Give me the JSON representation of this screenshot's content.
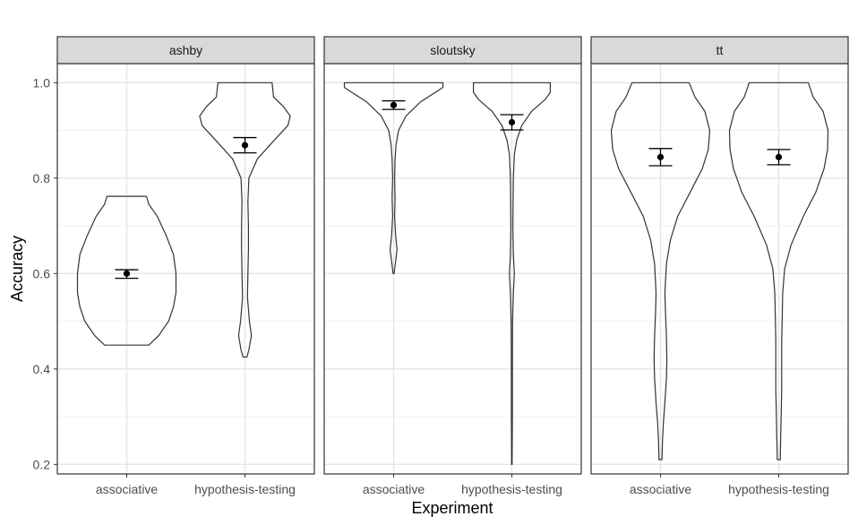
{
  "chart_data": {
    "type": "violin",
    "xlabel": "Experiment",
    "ylabel": "Accuracy",
    "ylim": [
      0.18,
      1.04
    ],
    "yticks": [
      "0.2",
      "0.4",
      "0.6",
      "0.8",
      "1.0"
    ],
    "categories": [
      "associative",
      "hypothesis-testing"
    ],
    "grid": true,
    "panels": [
      {
        "name": "ashby",
        "groups": [
          {
            "category": "associative",
            "mean": 0.6,
            "ci_low": 0.59,
            "ci_high": 0.608,
            "min": 0.45,
            "max": 0.762,
            "density": [
              [
                0.45,
                0.45
              ],
              [
                0.47,
                0.65
              ],
              [
                0.5,
                0.85
              ],
              [
                0.53,
                0.95
              ],
              [
                0.56,
                1.0
              ],
              [
                0.6,
                1.0
              ],
              [
                0.64,
                0.95
              ],
              [
                0.68,
                0.8
              ],
              [
                0.72,
                0.62
              ],
              [
                0.745,
                0.45
              ],
              [
                0.762,
                0.4
              ]
            ]
          },
          {
            "category": "hypothesis-testing",
            "mean": 0.869,
            "ci_low": 0.853,
            "ci_high": 0.885,
            "min": 0.425,
            "max": 1.0,
            "density": [
              [
                0.425,
                0.04
              ],
              [
                0.44,
                0.08
              ],
              [
                0.47,
                0.13
              ],
              [
                0.5,
                0.09
              ],
              [
                0.55,
                0.05
              ],
              [
                0.6,
                0.06
              ],
              [
                0.65,
                0.07
              ],
              [
                0.7,
                0.07
              ],
              [
                0.75,
                0.06
              ],
              [
                0.8,
                0.08
              ],
              [
                0.84,
                0.25
              ],
              [
                0.88,
                0.6
              ],
              [
                0.91,
                0.87
              ],
              [
                0.93,
                0.92
              ],
              [
                0.95,
                0.78
              ],
              [
                0.97,
                0.58
              ],
              [
                1.0,
                0.55
              ]
            ]
          }
        ]
      },
      {
        "name": "sloutsky",
        "groups": [
          {
            "category": "associative",
            "mean": 0.953,
            "ci_low": 0.944,
            "ci_high": 0.962,
            "min": 0.6,
            "max": 1.0,
            "density": [
              [
                0.6,
                0.01
              ],
              [
                0.625,
                0.04
              ],
              [
                0.65,
                0.07
              ],
              [
                0.68,
                0.04
              ],
              [
                0.72,
                0.02
              ],
              [
                0.76,
                0.03
              ],
              [
                0.8,
                0.02
              ],
              [
                0.84,
                0.03
              ],
              [
                0.87,
                0.05
              ],
              [
                0.9,
                0.1
              ],
              [
                0.93,
                0.25
              ],
              [
                0.96,
                0.55
              ],
              [
                0.98,
                0.85
              ],
              [
                0.99,
                1.0
              ],
              [
                1.0,
                1.0
              ]
            ]
          },
          {
            "category": "hypothesis-testing",
            "mean": 0.917,
            "ci_low": 0.901,
            "ci_high": 0.933,
            "min": 0.2,
            "max": 1.0,
            "density": [
              [
                0.2,
                0.005
              ],
              [
                0.3,
                0.01
              ],
              [
                0.4,
                0.01
              ],
              [
                0.5,
                0.015
              ],
              [
                0.56,
                0.03
              ],
              [
                0.6,
                0.05
              ],
              [
                0.64,
                0.03
              ],
              [
                0.7,
                0.02
              ],
              [
                0.8,
                0.03
              ],
              [
                0.85,
                0.05
              ],
              [
                0.88,
                0.1
              ],
              [
                0.91,
                0.2
              ],
              [
                0.94,
                0.4
              ],
              [
                0.965,
                0.68
              ],
              [
                0.98,
                0.78
              ],
              [
                1.0,
                0.78
              ]
            ]
          }
        ]
      },
      {
        "name": "tt",
        "groups": [
          {
            "category": "associative",
            "mean": 0.844,
            "ci_low": 0.826,
            "ci_high": 0.862,
            "min": 0.21,
            "max": 1.0,
            "density": [
              [
                0.21,
                0.03
              ],
              [
                0.25,
                0.04
              ],
              [
                0.29,
                0.06
              ],
              [
                0.33,
                0.09
              ],
              [
                0.38,
                0.12
              ],
              [
                0.42,
                0.13
              ],
              [
                0.47,
                0.12
              ],
              [
                0.52,
                0.1
              ],
              [
                0.56,
                0.09
              ],
              [
                0.62,
                0.12
              ],
              [
                0.67,
                0.2
              ],
              [
                0.72,
                0.35
              ],
              [
                0.77,
                0.6
              ],
              [
                0.82,
                0.85
              ],
              [
                0.86,
                0.97
              ],
              [
                0.9,
                1.0
              ],
              [
                0.94,
                0.9
              ],
              [
                0.97,
                0.7
              ],
              [
                1.0,
                0.58
              ]
            ]
          },
          {
            "category": "hypothesis-testing",
            "mean": 0.844,
            "ci_low": 0.828,
            "ci_high": 0.86,
            "min": 0.21,
            "max": 1.0,
            "density": [
              [
                0.21,
                0.03
              ],
              [
                0.26,
                0.04
              ],
              [
                0.31,
                0.05
              ],
              [
                0.36,
                0.06
              ],
              [
                0.41,
                0.06
              ],
              [
                0.46,
                0.06
              ],
              [
                0.51,
                0.07
              ],
              [
                0.56,
                0.08
              ],
              [
                0.61,
                0.12
              ],
              [
                0.66,
                0.25
              ],
              [
                0.72,
                0.5
              ],
              [
                0.77,
                0.75
              ],
              [
                0.82,
                0.92
              ],
              [
                0.86,
                0.99
              ],
              [
                0.9,
                1.0
              ],
              [
                0.94,
                0.9
              ],
              [
                0.97,
                0.7
              ],
              [
                1.0,
                0.6
              ]
            ]
          }
        ]
      }
    ]
  }
}
